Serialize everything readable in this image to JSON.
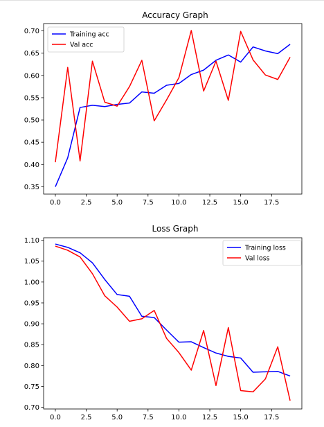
{
  "chart_data": [
    {
      "type": "line",
      "title": "Accuracy Graph",
      "xlabel": "",
      "ylabel": "",
      "x": [
        0,
        1,
        2,
        3,
        4,
        5,
        6,
        7,
        8,
        9,
        10,
        11,
        12,
        13,
        14,
        15,
        16,
        17,
        18,
        19
      ],
      "xlim": [
        -0.95,
        19.95
      ],
      "ylim": [
        0.3335,
        0.7165
      ],
      "xticks": [
        0.0,
        2.5,
        5.0,
        7.5,
        10.0,
        12.5,
        15.0,
        17.5
      ],
      "xtick_labels": [
        "0.0",
        "2.5",
        "5.0",
        "7.5",
        "10.0",
        "12.5",
        "15.0",
        "17.5"
      ],
      "yticks": [
        0.35,
        0.4,
        0.45,
        0.5,
        0.55,
        0.6,
        0.65,
        0.7
      ],
      "ytick_labels": [
        "0.35",
        "0.40",
        "0.45",
        "0.50",
        "0.55",
        "0.60",
        "0.65",
        "0.70"
      ],
      "legend": "top-left",
      "grid": false,
      "series": [
        {
          "name": "Training acc",
          "color": "#0000ff",
          "values": [
            0.35,
            0.415,
            0.528,
            0.533,
            0.53,
            0.535,
            0.538,
            0.563,
            0.56,
            0.578,
            0.582,
            0.602,
            0.612,
            0.634,
            0.646,
            0.63,
            0.664,
            0.655,
            0.649,
            0.67
          ]
        },
        {
          "name": "Val acc",
          "color": "#ff0000",
          "values": [
            0.405,
            0.618,
            0.408,
            0.632,
            0.54,
            0.531,
            0.575,
            0.634,
            0.498,
            0.545,
            0.595,
            0.701,
            0.565,
            0.632,
            0.544,
            0.699,
            0.635,
            0.601,
            0.591,
            0.641
          ]
        }
      ]
    },
    {
      "type": "line",
      "title": "Loss Graph",
      "xlabel": "",
      "ylabel": "",
      "x": [
        0,
        1,
        2,
        3,
        4,
        5,
        6,
        7,
        8,
        9,
        10,
        11,
        12,
        13,
        14,
        15,
        16,
        17,
        18,
        19
      ],
      "xlim": [
        -0.95,
        19.95
      ],
      "ylim": [
        0.696,
        1.106
      ],
      "xticks": [
        0.0,
        2.5,
        5.0,
        7.5,
        10.0,
        12.5,
        15.0,
        17.5
      ],
      "xtick_labels": [
        "0.0",
        "2.5",
        "5.0",
        "7.5",
        "10.0",
        "12.5",
        "15.0",
        "17.5"
      ],
      "yticks": [
        0.7,
        0.75,
        0.8,
        0.85,
        0.9,
        0.95,
        1.0,
        1.05,
        1.1
      ],
      "ytick_labels": [
        "0.70",
        "0.75",
        "0.80",
        "0.85",
        "0.90",
        "0.95",
        "1.00",
        "1.05",
        "1.10"
      ],
      "legend": "top-right",
      "grid": false,
      "series": [
        {
          "name": "Training loss",
          "color": "#0000ff",
          "values": [
            1.091,
            1.083,
            1.07,
            1.046,
            1.006,
            0.97,
            0.966,
            0.918,
            0.915,
            0.885,
            0.856,
            0.857,
            0.843,
            0.83,
            0.822,
            0.818,
            0.784,
            0.785,
            0.786,
            0.775
          ]
        },
        {
          "name": "Val loss",
          "color": "#ff0000",
          "values": [
            1.086,
            1.076,
            1.06,
            1.02,
            0.967,
            0.94,
            0.906,
            0.912,
            0.932,
            0.865,
            0.831,
            0.789,
            0.884,
            0.752,
            0.891,
            0.74,
            0.737,
            0.768,
            0.845,
            0.716
          ]
        }
      ]
    }
  ]
}
